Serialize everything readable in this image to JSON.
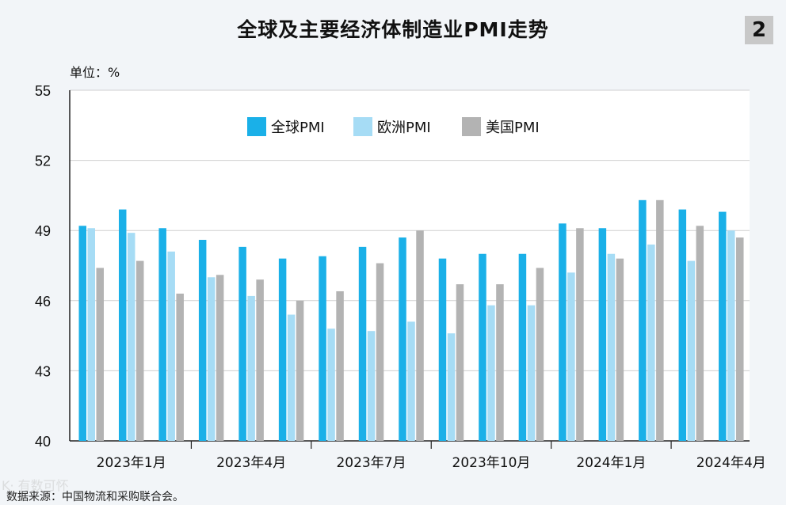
{
  "header": {
    "title": "全球及主要经济体制造业PMI走势",
    "page_number": "2",
    "unit_label": "单位：%"
  },
  "footer": {
    "source": "数据来源：中国物流和采购联合会。",
    "watermark": "K· 有数可怀"
  },
  "colors": {
    "global": "#1ab0e8",
    "europe": "#a6dcf5",
    "us": "#b3b3b3",
    "background": "#f2f5f8",
    "plot_bg": "#ffffff"
  },
  "chart_data": {
    "type": "bar",
    "ylim": [
      40,
      55
    ],
    "yticks": [
      40,
      43,
      46,
      49,
      52,
      55
    ],
    "grid": true,
    "legend_position": "top-center",
    "categories": [
      "2023-01",
      "2023-02",
      "2023-03",
      "2023-04",
      "2023-05",
      "2023-06",
      "2023-07",
      "2023-08",
      "2023-09",
      "2023-10",
      "2023-11",
      "2023-12",
      "2024-01",
      "2024-02",
      "2024-03",
      "2024-04",
      "2024-05"
    ],
    "x_tick_labels": [
      {
        "label": "2023年1月",
        "index": 1
      },
      {
        "label": "2023年4月",
        "index": 4
      },
      {
        "label": "2023年7月",
        "index": 7
      },
      {
        "label": "2023年10月",
        "index": 10
      },
      {
        "label": "2024年1月",
        "index": 13
      },
      {
        "label": "2024年4月",
        "index": 16
      }
    ],
    "series": [
      {
        "name": "全球PMI",
        "values": [
          49.2,
          49.9,
          49.1,
          48.6,
          48.3,
          47.8,
          47.9,
          48.3,
          48.7,
          47.8,
          48.0,
          48.0,
          49.3,
          49.1,
          50.3,
          49.9,
          49.8
        ]
      },
      {
        "name": "欧洲PMI",
        "values": [
          49.1,
          48.9,
          48.1,
          47.0,
          46.2,
          45.4,
          44.8,
          44.7,
          45.1,
          44.6,
          45.8,
          45.8,
          47.2,
          48.0,
          48.4,
          47.7,
          49.0
        ]
      },
      {
        "name": "美国PMI",
        "values": [
          47.4,
          47.7,
          46.3,
          47.1,
          46.9,
          46.0,
          46.4,
          47.6,
          49.0,
          46.7,
          46.7,
          47.4,
          49.1,
          47.8,
          50.3,
          49.2,
          48.7
        ]
      }
    ]
  }
}
